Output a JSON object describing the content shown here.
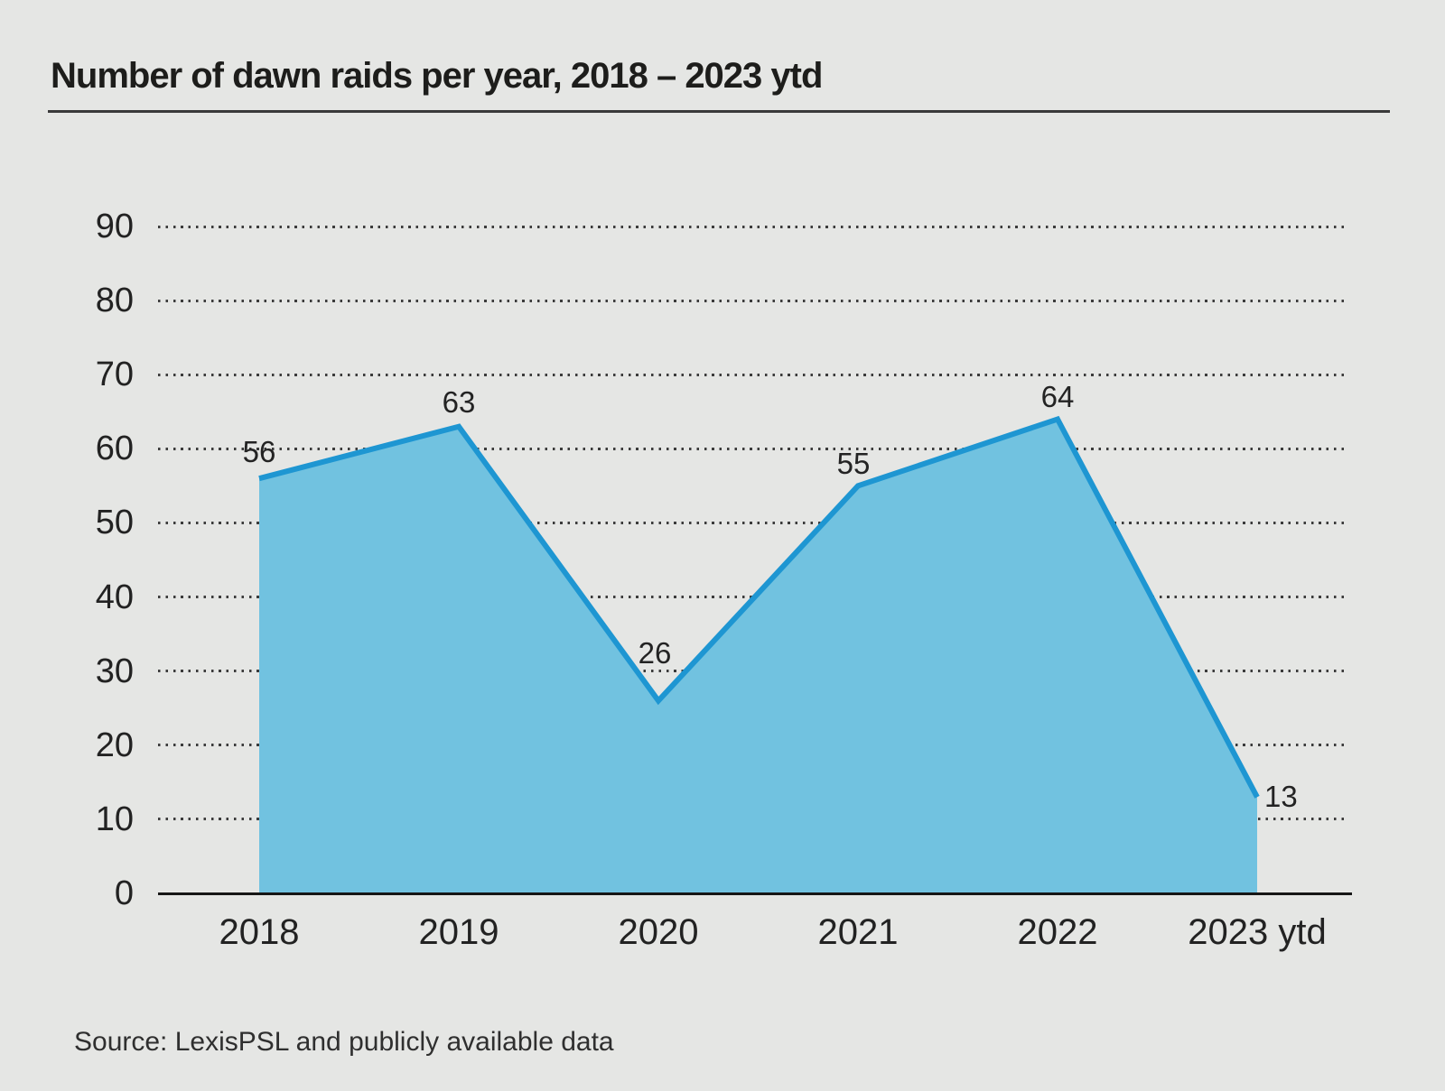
{
  "chart_data": {
    "type": "area",
    "title": "Number of dawn raids per year, 2018 – 2023 ytd",
    "categories": [
      "2018",
      "2019",
      "2020",
      "2021",
      "2022",
      "2023 ytd"
    ],
    "values": [
      56,
      63,
      26,
      55,
      64,
      13
    ],
    "series_name": "dawn raids per year",
    "ylim": [
      0,
      90
    ],
    "ytick_step": 10,
    "xlabel": "",
    "ylabel": "",
    "grid": "horizontal-dotted",
    "legend": "none",
    "fill_color": "#71c2e0",
    "line_color": "#1e96d2",
    "background_color": "#e5e6e4",
    "source": "Source: LexisPSL and publicly available data"
  }
}
